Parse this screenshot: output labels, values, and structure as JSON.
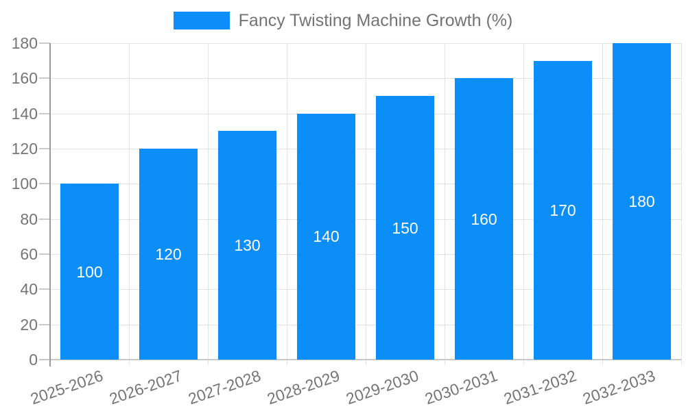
{
  "chart_data": {
    "type": "bar",
    "title": "Fancy Twisting Machine Growth (%)",
    "legend": {
      "label": "Fancy Twisting Machine Growth (%)",
      "position": "top-center"
    },
    "categories": [
      "2025-2026",
      "2026-2027",
      "2027-2028",
      "2028-2029",
      "2029-2030",
      "2030-2031",
      "2031-2032",
      "2032-2033"
    ],
    "series": [
      {
        "name": "Fancy Twisting Machine Growth (%)",
        "values": [
          100,
          120,
          130,
          140,
          150,
          160,
          170,
          180
        ]
      }
    ],
    "value_labels": [
      "100",
      "120",
      "130",
      "140",
      "150",
      "160",
      "170",
      "180"
    ],
    "xlabel": "",
    "ylabel": "",
    "ylim": [
      0,
      180
    ],
    "yticks": [
      0,
      20,
      40,
      60,
      80,
      100,
      120,
      140,
      160,
      180
    ],
    "grid": "horizontal and vertical gridlines on",
    "colors": {
      "bar": "#0c8ef8",
      "value_label": "#ffffff",
      "axis_text": "#757575",
      "legend_text": "#737373",
      "gridline": "#e3e3e3",
      "y_axis_line": "#9a9a9a",
      "x_axis_line": "#c8c8c8",
      "background": "#ffffff"
    }
  }
}
